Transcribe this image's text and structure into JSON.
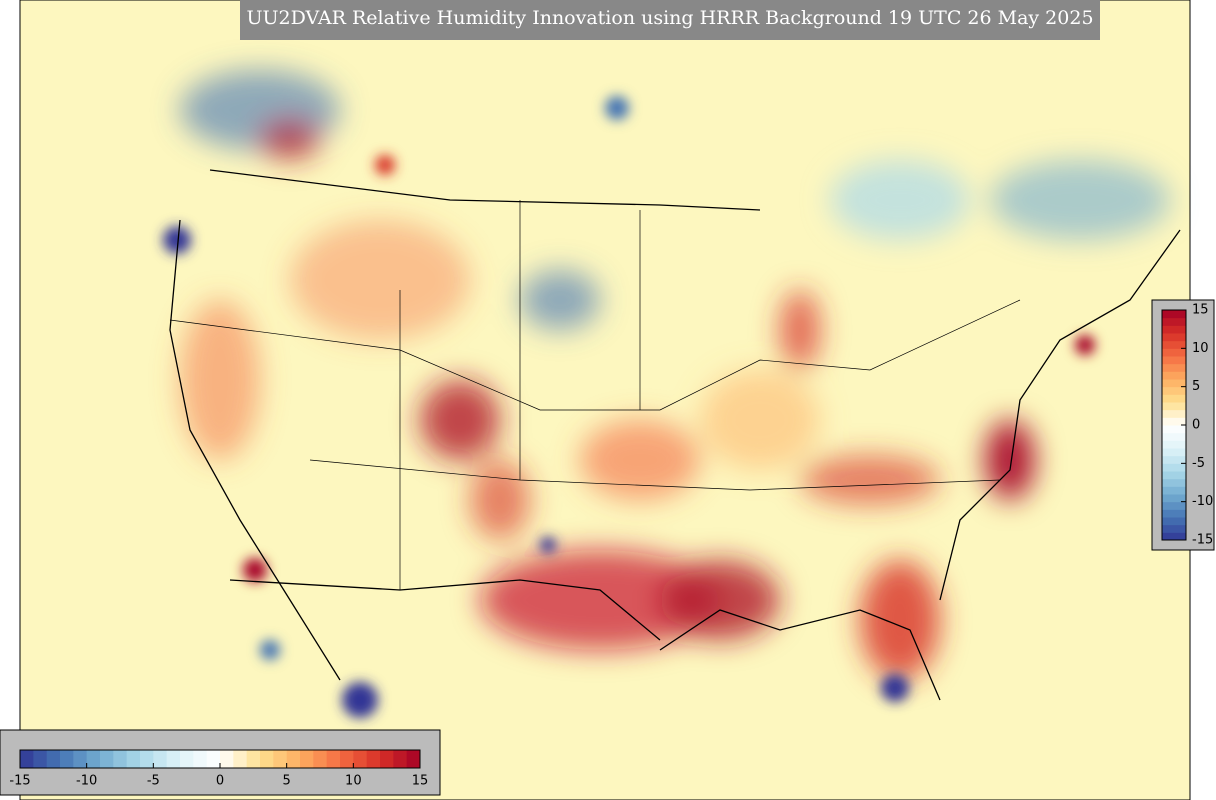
{
  "title": "UU2DVAR Relative Humidity Innovation using HRRR Background 19 UTC 26 May 2025",
  "colorbar": {
    "lim": [
      -15,
      15
    ],
    "colors": [
      "#313695",
      "#4575b4",
      "#74add1",
      "#abd9e9",
      "#e0f3f8",
      "#ffffff",
      "#fee090",
      "#fdae61",
      "#f46d43",
      "#d73027",
      "#a50026"
    ],
    "vertical_ticks": [
      15,
      10,
      5,
      0,
      -5,
      -10,
      -15
    ],
    "horizontal_ticks": [
      -15,
      -10,
      -5,
      0,
      5,
      10,
      15
    ]
  }
}
